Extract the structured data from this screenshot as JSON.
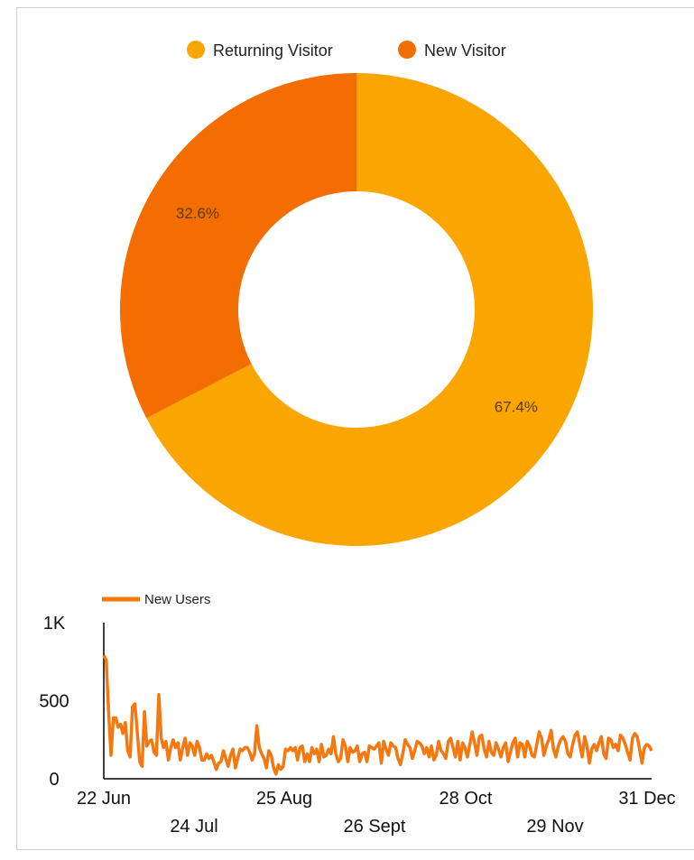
{
  "colors": {
    "returning": "#fba600",
    "new": "#f46d00",
    "line": "#f5770f",
    "axis": "#000000",
    "frame": "#cfcfcf"
  },
  "chart_data": [
    {
      "type": "pie",
      "donut": true,
      "legend_position": "top",
      "labels": [
        "Returning Visitor",
        "New Visitor"
      ],
      "values": [
        67.4,
        32.6
      ],
      "value_labels": [
        "67.4%",
        "32.6%"
      ],
      "colors": [
        "#fba600",
        "#f46d00"
      ]
    },
    {
      "type": "line",
      "legend_position": "top-left",
      "grid": false,
      "ylim": [
        0,
        1000
      ],
      "y_ticks": [
        0,
        500,
        1000
      ],
      "y_tick_labels": [
        "0",
        "500",
        "1K"
      ],
      "x_range": [
        "2023-06-22",
        "2023-12-31"
      ],
      "x_tick_labels_row1": [
        "22 Jun",
        "25 Aug",
        "28 Oct",
        "31 Dec"
      ],
      "x_tick_labels_row2": [
        "24 Jul",
        "26 Sept",
        "29 Nov"
      ],
      "series": [
        {
          "name": "New Users",
          "color": "#f5770f",
          "values": [
            790,
            760,
            430,
            150,
            390,
            390,
            330,
            350,
            290,
            360,
            180,
            140,
            460,
            480,
            300,
            110,
            80,
            430,
            210,
            240,
            250,
            170,
            150,
            540,
            260,
            200,
            240,
            120,
            200,
            250,
            200,
            230,
            120,
            200,
            260,
            150,
            230,
            210,
            150,
            240,
            200,
            120,
            120,
            160,
            130,
            150,
            110,
            60,
            100,
            110,
            180,
            130,
            80,
            150,
            190,
            70,
            130,
            190,
            180,
            200,
            200,
            170,
            120,
            160,
            340,
            200,
            160,
            130,
            70,
            180,
            150,
            70,
            30,
            90,
            60,
            80,
            190,
            180,
            200,
            180,
            200,
            120,
            200,
            210,
            110,
            160,
            110,
            200,
            160,
            190,
            110,
            220,
            140,
            150,
            190,
            160,
            270,
            160,
            110,
            130,
            250,
            210,
            110,
            200,
            170,
            180,
            210,
            110,
            160,
            170,
            110,
            210,
            200,
            190,
            210,
            230,
            100,
            240,
            190,
            150,
            230,
            210,
            200,
            130,
            90,
            160,
            250,
            220,
            200,
            130,
            180,
            240,
            230,
            210,
            160,
            200,
            140,
            210,
            120,
            150,
            240,
            180,
            160,
            130,
            240,
            260,
            200,
            140,
            240,
            120,
            230,
            200,
            140,
            220,
            300,
            230,
            150,
            270,
            280,
            190,
            140,
            240,
            170,
            150,
            230,
            190,
            140,
            200,
            230,
            110,
            170,
            230,
            260,
            140,
            230,
            220,
            140,
            240,
            210,
            150,
            140,
            220,
            300,
            260,
            150,
            210,
            250,
            310,
            190,
            140,
            210,
            250,
            270,
            240,
            160,
            140,
            220,
            280,
            300,
            220,
            140,
            270,
            210,
            100,
            190,
            220,
            180,
            230,
            270,
            160,
            130,
            260,
            250,
            200,
            220,
            180,
            280,
            260,
            220,
            170,
            120,
            260,
            290,
            270,
            190,
            100,
            200,
            220,
            210,
            180
          ]
        }
      ]
    }
  ]
}
